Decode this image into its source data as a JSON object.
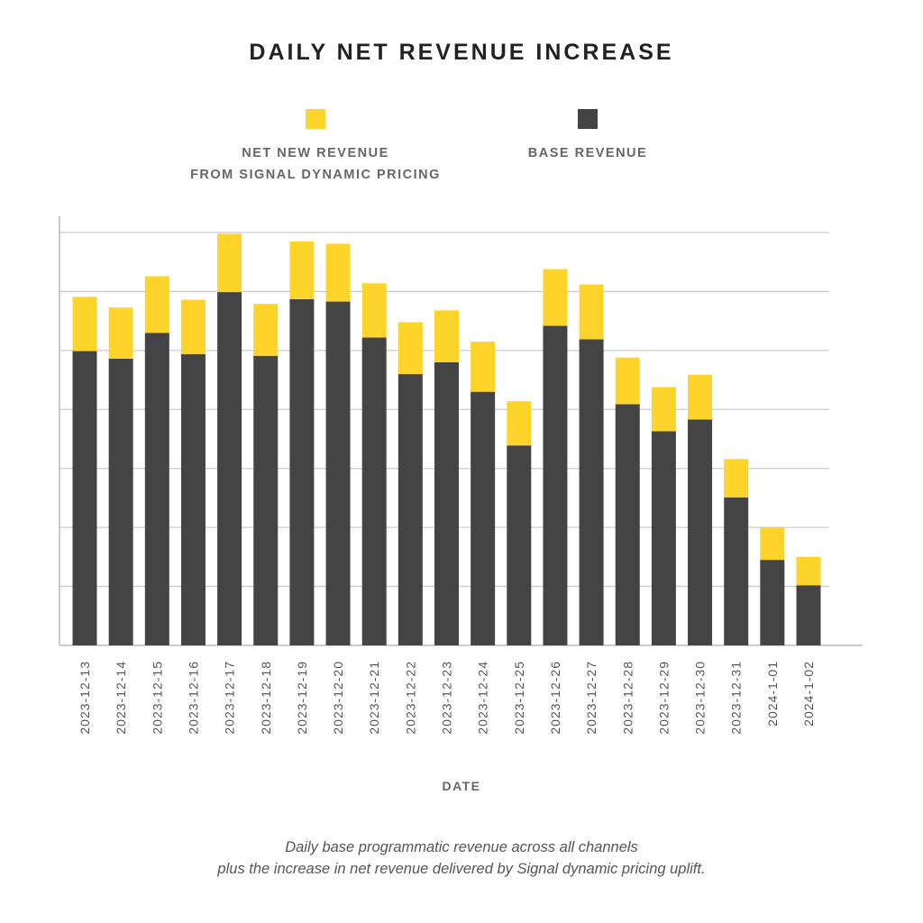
{
  "chart_data": {
    "type": "bar",
    "stacked": true,
    "title": "DAILY NET REVENUE INCREASE",
    "xlabel": "DATE",
    "ylabel": "",
    "ylim": [
      0,
      7
    ],
    "grid": true,
    "legend_position": "top",
    "categories": [
      "2023-12-13",
      "2023-12-14",
      "2023-12-15",
      "2023-12-16",
      "2023-12-17",
      "2023-12-18",
      "2023-12-19",
      "2023-12-20",
      "2023-12-21",
      "2023-12-22",
      "2023-12-23",
      "2023-12-24",
      "2023-12-25",
      "2023-12-26",
      "2023-12-27",
      "2023-12-28",
      "2023-12-29",
      "2023-12-30",
      "2023-12-31",
      "2024-1-01",
      "2024-1-02"
    ],
    "series": [
      {
        "name": "BASE REVENUE",
        "color": "#444444",
        "values": [
          4.99,
          4.86,
          5.3,
          4.94,
          5.99,
          4.91,
          5.87,
          5.83,
          5.22,
          4.6,
          4.8,
          4.3,
          3.39,
          5.42,
          5.19,
          4.09,
          3.63,
          3.83,
          2.51,
          1.45,
          1.02
        ]
      },
      {
        "name": "NET NEW REVENUE FROM SIGNAL DYNAMIC PRICING",
        "color": "#FFD42A",
        "values": [
          0.92,
          0.87,
          0.96,
          0.92,
          0.99,
          0.88,
          0.98,
          0.98,
          0.92,
          0.88,
          0.88,
          0.85,
          0.75,
          0.96,
          0.93,
          0.79,
          0.75,
          0.76,
          0.65,
          0.55,
          0.48
        ]
      }
    ],
    "caption": [
      "Daily base programmatic revenue across all channels",
      "plus the increase in net revenue delivered by Signal dynamic pricing uplift."
    ]
  },
  "legend": [
    {
      "label_lines": [
        "NET NEW REVENUE",
        "FROM SIGNAL DYNAMIC PRICING"
      ],
      "color": "#FFD42A"
    },
    {
      "label_lines": [
        "BASE REVENUE"
      ],
      "color": "#444444"
    }
  ]
}
